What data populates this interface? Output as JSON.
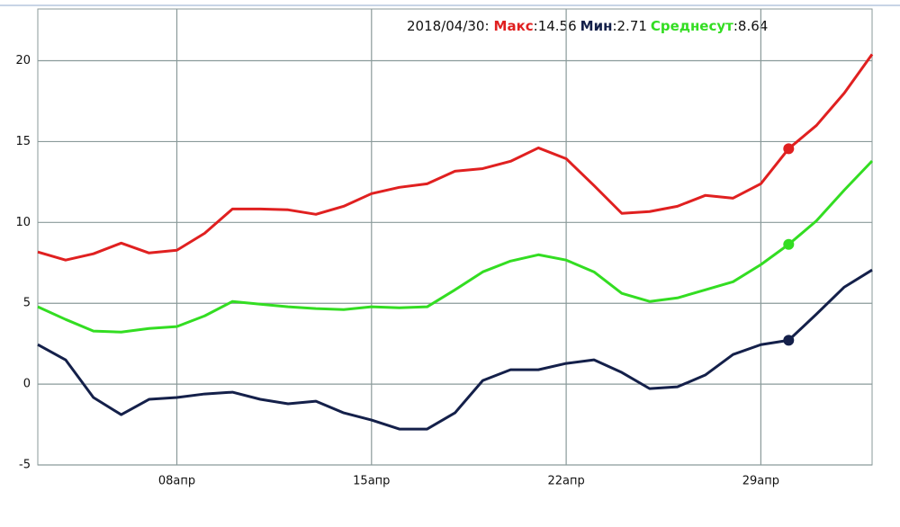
{
  "chart_data": {
    "type": "line",
    "categories": [
      null,
      null,
      null,
      null,
      null,
      "08апр",
      null,
      null,
      null,
      null,
      null,
      null,
      "15апр",
      null,
      null,
      null,
      null,
      null,
      null,
      "22апр",
      null,
      null,
      null,
      null,
      null,
      null,
      "29апр",
      null,
      null,
      null,
      null
    ],
    "series": [
      {
        "name": "Макс",
        "color": "#e02020",
        "values": [
          8.17,
          7.67,
          8.06,
          8.72,
          8.11,
          8.28,
          9.33,
          10.83,
          10.83,
          10.78,
          10.5,
          11.0,
          11.78,
          12.17,
          12.39,
          13.17,
          13.33,
          13.78,
          14.61,
          13.94,
          12.28,
          10.56,
          10.67,
          11.0,
          11.67,
          11.5,
          12.39,
          14.56,
          16.0,
          18.0,
          20.4
        ]
      },
      {
        "name": "Мин",
        "color": "#14204a",
        "values": [
          2.44,
          1.5,
          -0.83,
          -1.89,
          -0.94,
          -0.83,
          -0.61,
          -0.5,
          -0.94,
          -1.22,
          -1.06,
          -1.78,
          -2.22,
          -2.78,
          -2.78,
          -1.78,
          0.22,
          0.89,
          0.89,
          1.28,
          1.5,
          0.72,
          -0.28,
          -0.17,
          0.56,
          1.83,
          2.44,
          2.71,
          4.33,
          6.0,
          7.06
        ]
      },
      {
        "name": "Среднесут",
        "color": "#33dd22",
        "values": [
          4.78,
          4.0,
          3.28,
          3.22,
          3.44,
          3.56,
          4.22,
          5.11,
          4.94,
          4.78,
          4.67,
          4.61,
          4.78,
          4.72,
          4.78,
          5.83,
          6.94,
          7.61,
          8.0,
          7.67,
          6.94,
          5.61,
          5.11,
          5.33,
          5.83,
          6.33,
          7.39,
          8.64,
          10.1,
          12.0,
          13.8
        ]
      }
    ],
    "readout": {
      "date": "2018/04/30:",
      "index": 27,
      "values": [
        14.56,
        2.71,
        8.64
      ],
      "value_labels": [
        ":14.56",
        ":2.71",
        ":8.64"
      ]
    },
    "ylim": [
      -5,
      23.2
    ],
    "yticks": [
      -5,
      0,
      5,
      10,
      15,
      20
    ],
    "grid": true
  }
}
